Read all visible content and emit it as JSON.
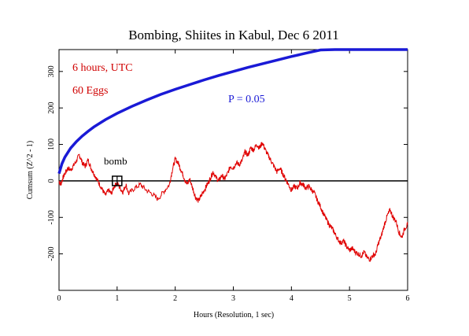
{
  "chart_data": {
    "type": "line",
    "title": "Bombing, Shiites in Kabul, Dec 6 2011",
    "xlabel": "Hours (Resolution, 1 sec)",
    "ylabel": "Cumsum (Z^2 - 1)",
    "xlim": [
      0,
      6
    ],
    "ylim": [
      -300,
      360
    ],
    "x_ticks": [
      0,
      1,
      2,
      3,
      4,
      5,
      6
    ],
    "y_ticks": [
      -200,
      -100,
      0,
      100,
      200,
      300
    ],
    "annotations": {
      "duration": "6 hours, UTC",
      "eggs": "60 Eggs",
      "p_label": "P = 0.05",
      "event_label": "bomb"
    },
    "event_marker": {
      "x": 1.0,
      "y": 0
    },
    "colors": {
      "cumsum": "#e00000",
      "p_curve": "#1a1ad6",
      "baseline": "#000000",
      "text_red": "#d00000",
      "text_blue": "#1a1ad6"
    },
    "series": [
      {
        "values": [
          [
            0.0,
            0
          ],
          [
            0.03,
            -10
          ],
          [
            0.06,
            5
          ],
          [
            0.1,
            20
          ],
          [
            0.15,
            35
          ],
          [
            0.2,
            30
          ],
          [
            0.25,
            42
          ],
          [
            0.3,
            55
          ],
          [
            0.35,
            72
          ],
          [
            0.4,
            50
          ],
          [
            0.45,
            40
          ],
          [
            0.5,
            58
          ],
          [
            0.55,
            35
          ],
          [
            0.6,
            20
          ],
          [
            0.65,
            5
          ],
          [
            0.7,
            -10
          ],
          [
            0.75,
            -25
          ],
          [
            0.8,
            -40
          ],
          [
            0.85,
            -25
          ],
          [
            0.9,
            -35
          ],
          [
            0.95,
            -15
          ],
          [
            1.0,
            -5
          ],
          [
            1.05,
            -20
          ],
          [
            1.1,
            -30
          ],
          [
            1.15,
            -10
          ],
          [
            1.2,
            -35
          ],
          [
            1.3,
            -20
          ],
          [
            1.4,
            -10
          ],
          [
            1.5,
            -25
          ],
          [
            1.6,
            -35
          ],
          [
            1.7,
            -50
          ],
          [
            1.8,
            -30
          ],
          [
            1.9,
            -10
          ],
          [
            1.95,
            30
          ],
          [
            2.0,
            60
          ],
          [
            2.05,
            50
          ],
          [
            2.1,
            30
          ],
          [
            2.15,
            10
          ],
          [
            2.2,
            -10
          ],
          [
            2.25,
            5
          ],
          [
            2.3,
            -20
          ],
          [
            2.35,
            -45
          ],
          [
            2.4,
            -55
          ],
          [
            2.45,
            -40
          ],
          [
            2.5,
            -25
          ],
          [
            2.55,
            -10
          ],
          [
            2.6,
            5
          ],
          [
            2.65,
            25
          ],
          [
            2.7,
            10
          ],
          [
            2.75,
            0
          ],
          [
            2.8,
            15
          ],
          [
            2.85,
            5
          ],
          [
            2.9,
            20
          ],
          [
            2.95,
            40
          ],
          [
            3.0,
            35
          ],
          [
            3.05,
            50
          ],
          [
            3.1,
            45
          ],
          [
            3.15,
            55
          ],
          [
            3.2,
            80
          ],
          [
            3.25,
            70
          ],
          [
            3.3,
            90
          ],
          [
            3.35,
            85
          ],
          [
            3.4,
            100
          ],
          [
            3.45,
            90
          ],
          [
            3.5,
            105
          ],
          [
            3.55,
            85
          ],
          [
            3.6,
            70
          ],
          [
            3.65,
            55
          ],
          [
            3.7,
            40
          ],
          [
            3.75,
            25
          ],
          [
            3.8,
            35
          ],
          [
            3.85,
            20
          ],
          [
            3.9,
            5
          ],
          [
            3.95,
            -10
          ],
          [
            4.0,
            -25
          ],
          [
            4.05,
            -15
          ],
          [
            4.1,
            -20
          ],
          [
            4.15,
            -5
          ],
          [
            4.2,
            -10
          ],
          [
            4.25,
            -20
          ],
          [
            4.3,
            -15
          ],
          [
            4.35,
            -25
          ],
          [
            4.4,
            -35
          ],
          [
            4.45,
            -55
          ],
          [
            4.5,
            -70
          ],
          [
            4.55,
            -90
          ],
          [
            4.6,
            -105
          ],
          [
            4.65,
            -120
          ],
          [
            4.7,
            -130
          ],
          [
            4.75,
            -145
          ],
          [
            4.8,
            -160
          ],
          [
            4.85,
            -170
          ],
          [
            4.9,
            -165
          ],
          [
            4.95,
            -180
          ],
          [
            5.0,
            -190
          ],
          [
            5.05,
            -185
          ],
          [
            5.1,
            -195
          ],
          [
            5.15,
            -200
          ],
          [
            5.2,
            -205
          ],
          [
            5.25,
            -195
          ],
          [
            5.3,
            -210
          ],
          [
            5.35,
            -215
          ],
          [
            5.4,
            -205
          ],
          [
            5.45,
            -200
          ],
          [
            5.5,
            -170
          ],
          [
            5.55,
            -150
          ],
          [
            5.6,
            -120
          ],
          [
            5.65,
            -95
          ],
          [
            5.7,
            -80
          ],
          [
            5.75,
            -100
          ],
          [
            5.8,
            -110
          ],
          [
            5.85,
            -140
          ],
          [
            5.9,
            -155
          ],
          [
            5.95,
            -130
          ],
          [
            6.0,
            -120
          ]
        ]
      },
      {
        "values": [
          [
            0.0,
            20
          ],
          [
            0.05,
            47
          ],
          [
            0.1,
            65
          ],
          [
            0.2,
            90
          ],
          [
            0.3,
            108
          ],
          [
            0.4,
            123
          ],
          [
            0.5,
            136
          ],
          [
            0.6,
            148
          ],
          [
            0.8,
            168
          ],
          [
            1.0,
            185
          ],
          [
            1.25,
            204
          ],
          [
            1.5,
            221
          ],
          [
            1.75,
            237
          ],
          [
            2.0,
            251
          ],
          [
            2.25,
            264
          ],
          [
            2.5,
            277
          ],
          [
            2.75,
            289
          ],
          [
            3.0,
            300
          ],
          [
            3.25,
            311
          ],
          [
            3.5,
            321
          ],
          [
            3.75,
            331
          ],
          [
            4.0,
            341
          ],
          [
            4.25,
            350
          ],
          [
            4.5,
            359
          ],
          [
            4.75,
            368
          ],
          [
            5.0,
            377
          ],
          [
            5.25,
            385
          ],
          [
            5.5,
            393
          ],
          [
            5.75,
            401
          ],
          [
            6.0,
            409
          ]
        ]
      }
    ]
  }
}
